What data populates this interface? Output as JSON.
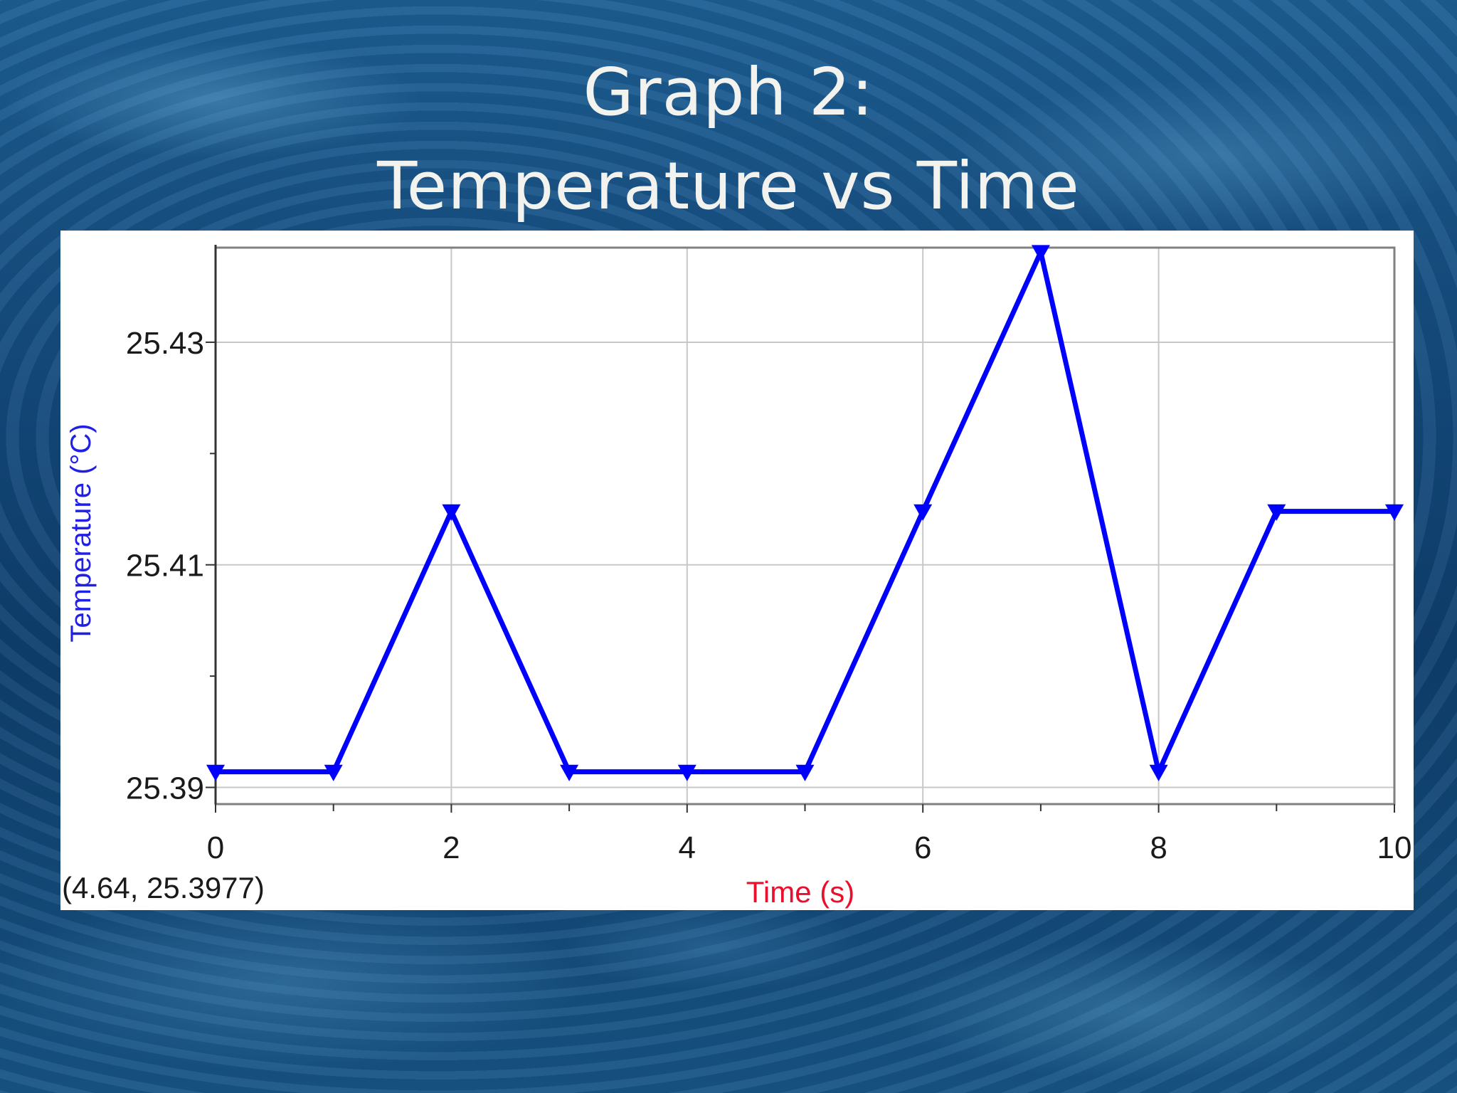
{
  "slide": {
    "title_line1": "Graph 2:",
    "title_line2": "Temperature vs Time"
  },
  "chart_data": {
    "type": "line",
    "xlabel": "Time (s)",
    "ylabel": "Temperature (°C)",
    "xlim": [
      0,
      10
    ],
    "ylim": [
      25.3885,
      25.4385
    ],
    "x_ticks": [
      0,
      2,
      4,
      6,
      8,
      10
    ],
    "x_minor_ticks": [
      1,
      3,
      5,
      7,
      9
    ],
    "y_ticks": [
      25.39,
      25.41,
      25.43
    ],
    "y_tick_labels": [
      "25.39",
      "25.41",
      "25.43"
    ],
    "y_minor_ticks": [
      25.4,
      25.42
    ],
    "grid": true,
    "marker": "triangle-down",
    "series_color": "#0000ff",
    "readout": "(4.64, 25.3977)",
    "series": [
      {
        "x": [
          0,
          1,
          2,
          3,
          4,
          5,
          6,
          7,
          8,
          9,
          10
        ],
        "values": [
          25.3914,
          25.3914,
          25.4148,
          25.3914,
          25.3914,
          25.3914,
          25.4148,
          25.4381,
          25.3914,
          25.4148,
          25.4148
        ]
      }
    ]
  }
}
